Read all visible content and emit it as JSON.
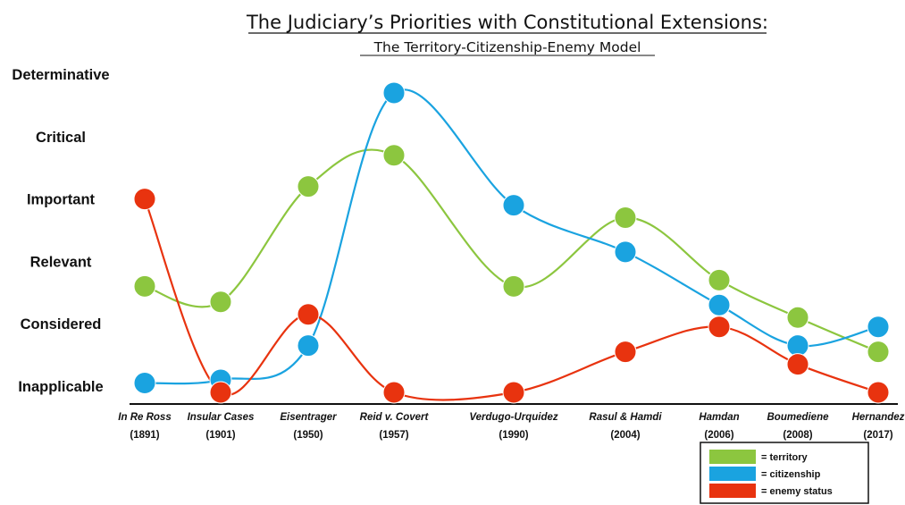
{
  "chart_data": {
    "type": "line",
    "title": "The Judiciary’s Priorities with Constitutional Extensions:",
    "subtitle": "The Territory-Citizenship-Enemy Model",
    "y_levels": [
      "Inapplicable",
      "Considered",
      "Relevant",
      "Important",
      "Critical",
      "Determinative"
    ],
    "ylim": [
      0,
      5
    ],
    "categories": [
      {
        "name": "In Re Ross",
        "year": "(1891)"
      },
      {
        "name": "Insular Cases",
        "year": "(1901)"
      },
      {
        "name": "Eisentrager",
        "year": "(1950)"
      },
      {
        "name": "Reid v. Covert",
        "year": "(1957)"
      },
      {
        "name": "Verdugo-Urquidez",
        "year": "(1990)"
      },
      {
        "name": "Rasul & Hamdi",
        "year": "(2004)"
      },
      {
        "name": "Hamdan",
        "year": "(2006)"
      },
      {
        "name": "Boumediene",
        "year": "(2008)"
      },
      {
        "name": "Hernandez",
        "year": "(2017)"
      }
    ],
    "series": [
      {
        "name": "= territory",
        "color": "#8cc63f",
        "values": [
          1.6,
          1.35,
          3.2,
          3.7,
          1.6,
          2.7,
          1.7,
          1.1,
          0.55
        ]
      },
      {
        "name": "= citizenship",
        "color": "#1aa3e0",
        "values": [
          0.05,
          0.1,
          0.65,
          4.7,
          2.9,
          2.15,
          1.3,
          0.65,
          0.95
        ]
      },
      {
        "name": "= enemy status",
        "color": "#e8330f",
        "values": [
          3.0,
          -0.1,
          1.15,
          -0.1,
          -0.1,
          0.55,
          0.95,
          0.35,
          -0.1
        ]
      }
    ],
    "legend_position": "bottom-right",
    "grid": false
  }
}
